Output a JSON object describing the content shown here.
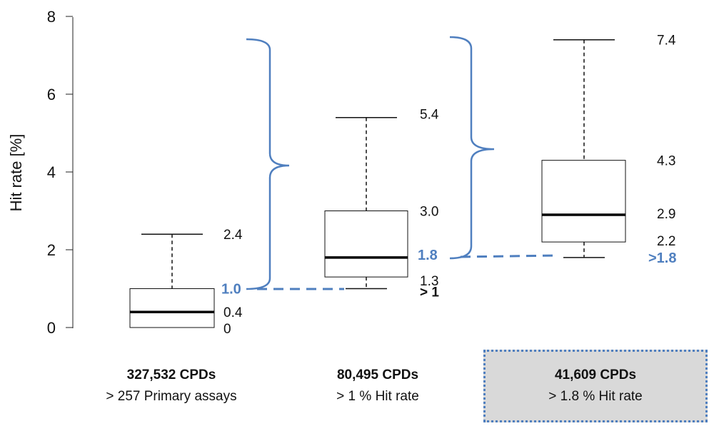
{
  "chart_data": {
    "type": "box",
    "ylabel": "Hit rate [%]",
    "ylim": [
      0,
      8
    ],
    "yticks": [
      "0",
      "2",
      "4",
      "6",
      "8"
    ],
    "boxes": [
      {
        "whisker_low": 0,
        "q1": 0,
        "median": 0.4,
        "q3": 1.0,
        "whisker_high": 2.4,
        "labels": {
          "whisker_high": "2.4",
          "q3": "1.0",
          "median": "0.4",
          "q1": "0"
        }
      },
      {
        "whisker_low": 1.0,
        "q1": 1.3,
        "median": 1.8,
        "q3": 3.0,
        "whisker_high": 5.4,
        "labels": {
          "whisker_high": "5.4",
          "q3": "3.0",
          "median": "1.8",
          "q1": "1.3",
          "whisker_low": "> 1"
        }
      },
      {
        "whisker_low": 1.8,
        "q1": 2.2,
        "median": 2.9,
        "q3": 4.3,
        "whisker_high": 7.4,
        "labels": {
          "whisker_high": "7.4",
          "q3": "4.3",
          "median": "2.9",
          "q1": "2.2",
          "whisker_low": ">1.8"
        }
      }
    ],
    "threshold_color": "#4f7fbf"
  },
  "groups": [
    {
      "count": "327,532 CPDs",
      "desc": "> 257 Primary assays"
    },
    {
      "count": "80,495 CPDs",
      "desc": "> 1 % Hit rate"
    },
    {
      "count": "41,609 CPDs",
      "desc": "> 1.8 % Hit rate"
    }
  ]
}
